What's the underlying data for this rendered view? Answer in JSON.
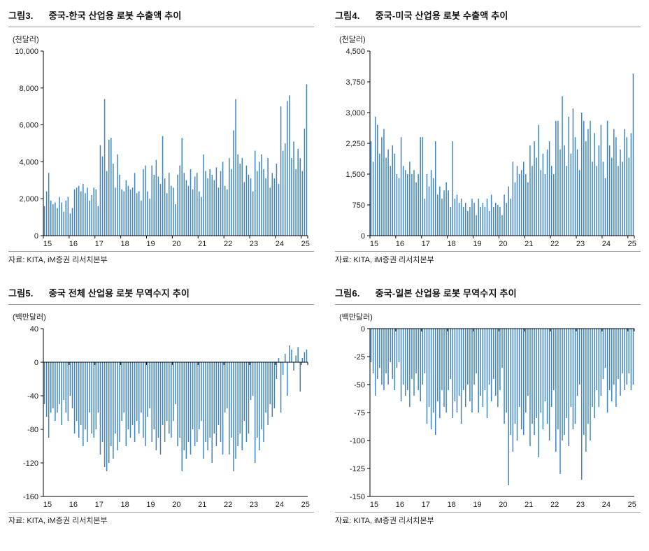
{
  "colors": {
    "bar": "#3D85C6",
    "axis": "#000000",
    "rule": "#9a9a9a"
  },
  "figures": [
    {
      "number": "그림3.",
      "title": "중국-한국 산업용 로봇 수출액 추이",
      "unit": "(천달러)",
      "source": "자료: KITA, iM증권 리서치본부"
    },
    {
      "number": "그림4.",
      "title": "중국-미국 산업용 로봇 수출액 추이",
      "unit": "(천달러)",
      "source": "자료: KITA, iM증권 리서치본부"
    },
    {
      "number": "그림5.",
      "title": "중국 전체 산업용 로봇 무역수지 추이",
      "unit": "(백만달러)",
      "source": "자료: KITA, iM증권 리서치본부"
    },
    {
      "number": "그림6.",
      "title": "중국-일본 산업용 로봇 무역수지 추이",
      "unit": "(백만달러)",
      "source": "자료: KITA, iM증권 리서치본부"
    }
  ],
  "chart_data": [
    {
      "type": "bar",
      "title": "그림3. 중국-한국 산업용 로봇 수출액 추이",
      "ylabel": "(천달러)",
      "x_start": "2015-01",
      "x_end": "2025-03",
      "frequency": "monthly",
      "ylim": [
        0,
        10000
      ],
      "yticks": [
        [
          0,
          "0"
        ],
        [
          2000,
          "2,000"
        ],
        [
          4000,
          "4,000"
        ],
        [
          6000,
          "6,000"
        ],
        [
          8000,
          "8,000"
        ],
        [
          10000,
          "10,000"
        ]
      ],
      "x_tick_labels": [
        "15",
        "16",
        "17",
        "18",
        "19",
        "20",
        "21",
        "22",
        "23",
        "24",
        "25"
      ],
      "grid": false,
      "legend": "none",
      "values": [
        1600,
        2400,
        3400,
        1900,
        1700,
        1800,
        1500,
        2100,
        1800,
        1300,
        1900,
        2100,
        1200,
        1500,
        2500,
        2600,
        2700,
        2400,
        2800,
        2300,
        2600,
        1900,
        2200,
        2600,
        2500,
        1600,
        4900,
        4300,
        7400,
        3500,
        5200,
        5300,
        3900,
        2600,
        4400,
        3300,
        2500,
        2400,
        3000,
        2700,
        2500,
        2600,
        3400,
        2300,
        2400,
        1900,
        3600,
        3800,
        2400,
        2000,
        3800,
        3300,
        4100,
        3200,
        2800,
        5400,
        3100,
        2300,
        3400,
        2700,
        2600,
        1700,
        3300,
        3800,
        5300,
        3400,
        3000,
        2700,
        3600,
        2500,
        3200,
        3400,
        2400,
        2100,
        4400,
        3500,
        3100,
        3600,
        3300,
        3000,
        3700,
        2600,
        3500,
        4000,
        2700,
        2500,
        4200,
        3600,
        5700,
        7400,
        4400,
        3900,
        4200,
        2900,
        3800,
        3300,
        3100,
        2400,
        4600,
        3500,
        4000,
        4400,
        3600,
        3100,
        4200,
        2600,
        3400,
        3100,
        3900,
        2800,
        7000,
        4600,
        5000,
        7300,
        7600,
        4200,
        5100,
        3600,
        4700,
        4200,
        3500,
        5800,
        8200
      ]
    },
    {
      "type": "bar",
      "title": "그림4. 중국-미국 산업용 로봇 수출액 추이",
      "ylabel": "(천달러)",
      "x_start": "2015-01",
      "x_end": "2025-03",
      "frequency": "monthly",
      "ylim": [
        0,
        4500
      ],
      "yticks": [
        [
          0,
          "0"
        ],
        [
          750,
          "750"
        ],
        [
          1500,
          "1,500"
        ],
        [
          2250,
          "2,250"
        ],
        [
          3000,
          "3,000"
        ],
        [
          3750,
          "3,750"
        ],
        [
          4500,
          "4,500"
        ]
      ],
      "x_tick_labels": [
        "15",
        "16",
        "17",
        "18",
        "19",
        "20",
        "21",
        "22",
        "23",
        "24",
        "25"
      ],
      "grid": false,
      "legend": "none",
      "values": [
        2300,
        1800,
        2900,
        2700,
        2000,
        2400,
        2600,
        1900,
        2100,
        1700,
        2200,
        2000,
        1500,
        1400,
        2400,
        1700,
        1600,
        1500,
        1800,
        1500,
        1600,
        1300,
        1500,
        2400,
        2400,
        900,
        1500,
        1200,
        1600,
        1400,
        2300,
        1000,
        1200,
        900,
        1100,
        1300,
        1100,
        700,
        2300,
        900,
        1000,
        800,
        900,
        700,
        800,
        600,
        700,
        900,
        800,
        500,
        900,
        700,
        800,
        700,
        900,
        600,
        1000,
        700,
        800,
        750,
        700,
        500,
        1000,
        800,
        1200,
        900,
        1800,
        1300,
        1700,
        1500,
        1600,
        1800,
        1500,
        1300,
        2200,
        1700,
        2300,
        1900,
        2700,
        1600,
        2000,
        1500,
        2100,
        2300,
        1700,
        1500,
        2800,
        2800,
        2100,
        3400,
        2200,
        1700,
        2900,
        2000,
        3100,
        2400,
        2100,
        1600,
        3000,
        2800,
        2300,
        2600,
        2800,
        1800,
        2500,
        1700,
        2200,
        2700,
        1800,
        1400,
        2800,
        2200,
        1900,
        2600,
        2400,
        1700,
        2100,
        1800,
        2600,
        2400,
        1900,
        2500,
        3950
      ]
    },
    {
      "type": "bar",
      "title": "그림5. 중국 전체 산업용 로봇 무역수지 추이",
      "ylabel": "(백만달러)",
      "x_start": "2015-01",
      "x_end": "2025-03",
      "frequency": "monthly",
      "ylim": [
        -160,
        40
      ],
      "yticks": [
        [
          40,
          "40"
        ],
        [
          0,
          "0"
        ],
        [
          -40,
          "-40"
        ],
        [
          -80,
          "-80"
        ],
        [
          -120,
          "-120"
        ],
        [
          -160,
          "-160"
        ]
      ],
      "x_tick_labels": [
        "15",
        "16",
        "17",
        "18",
        "19",
        "20",
        "21",
        "22",
        "23",
        "24",
        "25"
      ],
      "grid": false,
      "legend": "none",
      "values": [
        -50,
        -65,
        -90,
        -60,
        -55,
        -70,
        -60,
        -50,
        -75,
        -45,
        -60,
        -70,
        -40,
        -55,
        -85,
        -70,
        -90,
        -75,
        -100,
        -80,
        -95,
        -60,
        -85,
        -90,
        -80,
        -60,
        -110,
        -95,
        -125,
        -130,
        -120,
        -100,
        -115,
        -85,
        -105,
        -95,
        -70,
        -60,
        -100,
        -80,
        -90,
        -75,
        -95,
        -70,
        -85,
        -60,
        -90,
        -100,
        -65,
        -55,
        -95,
        -80,
        -105,
        -90,
        -110,
        -75,
        -95,
        -70,
        -85,
        -90,
        -70,
        -50,
        -100,
        -90,
        -130,
        -105,
        -115,
        -95,
        -110,
        -80,
        -100,
        -95,
        -80,
        -70,
        -115,
        -95,
        -105,
        -90,
        -120,
        -85,
        -100,
        -75,
        -95,
        -110,
        -60,
        -55,
        -110,
        -90,
        -130,
        -115,
        -100,
        -85,
        -105,
        -70,
        -95,
        -85,
        -45,
        -40,
        -120,
        -90,
        -105,
        -80,
        -95,
        -60,
        -75,
        -50,
        -65,
        -55,
        -20,
        5,
        -60,
        -15,
        10,
        -40,
        20,
        15,
        -10,
        8,
        18,
        -35,
        5,
        12,
        15
      ]
    },
    {
      "type": "bar",
      "title": "그림6. 중국-일본 산업용 로봇 무역수지 추이",
      "ylabel": "(백만달러)",
      "x_start": "2015-01",
      "x_end": "2025-03",
      "frequency": "monthly",
      "ylim": [
        -150,
        0
      ],
      "yticks": [
        [
          0,
          "0"
        ],
        [
          -25,
          "-25"
        ],
        [
          -50,
          "-50"
        ],
        [
          -75,
          "-75"
        ],
        [
          -100,
          "-100"
        ],
        [
          -125,
          "-125"
        ],
        [
          -150,
          "-150"
        ]
      ],
      "x_tick_labels": [
        "15",
        "16",
        "17",
        "18",
        "19",
        "20",
        "21",
        "22",
        "23",
        "24",
        "25"
      ],
      "grid": false,
      "legend": "none",
      "values": [
        -30,
        -40,
        -60,
        -45,
        -35,
        -50,
        -55,
        -40,
        -50,
        -30,
        -45,
        -55,
        -35,
        -30,
        -65,
        -50,
        -60,
        -55,
        -70,
        -45,
        -60,
        -40,
        -55,
        -65,
        -50,
        -40,
        -85,
        -70,
        -90,
        -75,
        -95,
        -65,
        -80,
        -55,
        -70,
        -75,
        -55,
        -45,
        -80,
        -65,
        -75,
        -60,
        -85,
        -55,
        -70,
        -50,
        -65,
        -75,
        -50,
        -40,
        -75,
        -60,
        -70,
        -55,
        -80,
        -50,
        -65,
        -45,
        -60,
        -70,
        -55,
        -35,
        -85,
        -75,
        -140,
        -95,
        -110,
        -85,
        -100,
        -70,
        -90,
        -95,
        -75,
        -60,
        -105,
        -85,
        -95,
        -80,
        -115,
        -75,
        -90,
        -65,
        -85,
        -100,
        -70,
        -55,
        -110,
        -90,
        -130,
        -100,
        -95,
        -80,
        -105,
        -70,
        -90,
        -85,
        -60,
        -50,
        -135,
        -95,
        -110,
        -85,
        -100,
        -70,
        -80,
        -55,
        -70,
        -60,
        -45,
        -35,
        -75,
        -55,
        -65,
        -50,
        -70,
        -45,
        -60,
        -40,
        -55,
        -50,
        -40,
        -55,
        -50
      ]
    }
  ]
}
